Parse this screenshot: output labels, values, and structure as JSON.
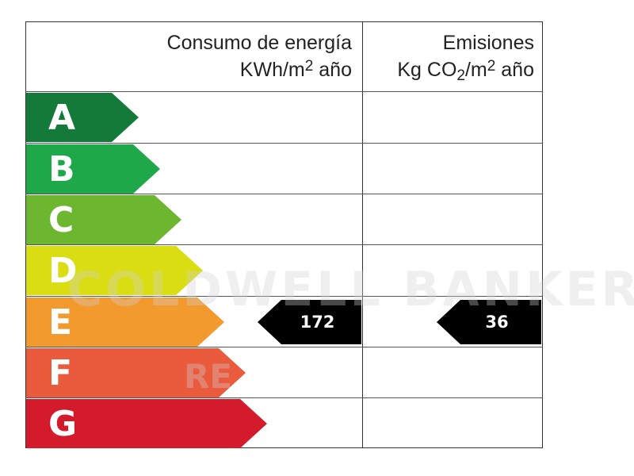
{
  "headers": {
    "energy_line1": "Consumo de energía",
    "energy_line2": "KWh/m",
    "energy_sup": "2",
    "energy_tail": " año",
    "emissions_line1": "Emisiones",
    "emissions_pre": "Kg CO",
    "emissions_sub": "2",
    "emissions_mid": "/m",
    "emissions_sup": "2",
    "emissions_tail": " año"
  },
  "bands": [
    {
      "letter": "A",
      "color": "#137a3a"
    },
    {
      "letter": "B",
      "color": "#1fa84a"
    },
    {
      "letter": "C",
      "color": "#6cb72f"
    },
    {
      "letter": "D",
      "color": "#dadd12"
    },
    {
      "letter": "E",
      "color": "#f39a2f"
    },
    {
      "letter": "F",
      "color": "#ea5a3c"
    },
    {
      "letter": "G",
      "color": "#d41b2c"
    }
  ],
  "rating": {
    "energy": {
      "band": "E",
      "value": "172"
    },
    "emissions": {
      "band": "E",
      "value": "36"
    }
  },
  "watermark": {
    "line1": "COLDWELL BANKER",
    "line2": "RE"
  }
}
